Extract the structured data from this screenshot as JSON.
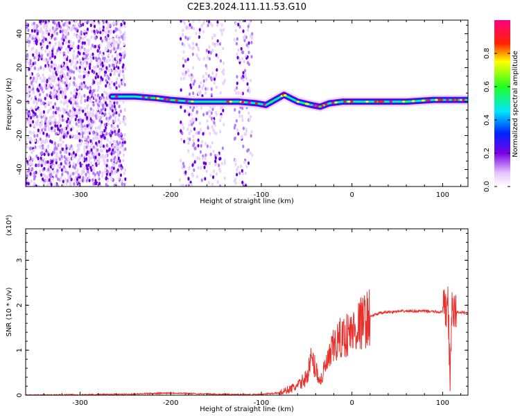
{
  "figure_title": "C2E3.2024.111.11.53.G10",
  "colors": {
    "snr_line": "#e8302c",
    "axis": "#000000",
    "background": "#ffffff"
  },
  "chart_data": [
    {
      "type": "heatmap",
      "title": "",
      "xlabel": "Height of straight line (km)",
      "ylabel": "Frequency (Hz)",
      "xlim": [
        -360,
        128
      ],
      "ylim": [
        -50,
        48
      ],
      "x_ticks": [
        -300,
        -200,
        -100,
        0,
        100
      ],
      "y_ticks": [
        -40,
        -20,
        0,
        20,
        40
      ],
      "colorbar": {
        "label": "Normalized spectral amplitude",
        "range": [
          0,
          1
        ],
        "ticks": [
          0.0,
          0.2,
          0.4,
          0.6,
          0.8
        ],
        "tick_labels": [
          "0.0",
          "0.2",
          "0.4",
          "0.6",
          "0.8"
        ],
        "colormap": "white-purple-blue-cyan-green-yellow-red-magenta"
      },
      "features": {
        "noise_regions_x": [
          [
            -360,
            -250
          ],
          [
            -190,
            -140
          ],
          [
            -130,
            -110
          ]
        ],
        "doppler_trace": {
          "x": [
            -265,
            -240,
            -215,
            -200,
            -175,
            -150,
            -125,
            -105,
            -95,
            -75,
            -60,
            -45,
            -35,
            -25,
            -10,
            0,
            30,
            60,
            90,
            105,
            128
          ],
          "y": [
            3,
            3,
            2,
            1,
            0,
            0,
            0,
            -1,
            -2,
            4,
            0,
            -2,
            -3,
            -1,
            0,
            0,
            0,
            0,
            1,
            1,
            1
          ]
        }
      }
    },
    {
      "type": "line",
      "title": "",
      "xlabel": "Height of straight line (km)",
      "ylabel": "SNR (10 * v/v)",
      "y_multiplier": "(x10⁴)",
      "xlim": [
        -360,
        128
      ],
      "ylim": [
        0,
        3.7
      ],
      "x_ticks": [
        -300,
        -200,
        -100,
        0,
        100
      ],
      "y_ticks": [
        0,
        1,
        2,
        3
      ],
      "series": [
        {
          "x": [
            -360,
            -300,
            -250,
            -200,
            -150,
            -110,
            -80,
            -60,
            -50,
            -45,
            -40,
            -35,
            -30,
            -25,
            -20,
            -15,
            -10,
            -5,
            0,
            5,
            10,
            20,
            30,
            40,
            60,
            80,
            90,
            95,
            100,
            104,
            106,
            108,
            110,
            115,
            128
          ],
          "y": [
            0.0,
            0.01,
            0.02,
            0.05,
            0.02,
            0.01,
            0.05,
            0.2,
            0.4,
            0.8,
            0.6,
            0.3,
            0.6,
            0.8,
            1.1,
            1.2,
            1.3,
            1.35,
            1.4,
            1.5,
            1.6,
            1.75,
            1.82,
            1.85,
            1.87,
            1.87,
            1.86,
            1.85,
            1.85,
            1.9,
            2.2,
            0.3,
            1.8,
            1.85,
            1.83
          ]
        }
      ]
    }
  ]
}
